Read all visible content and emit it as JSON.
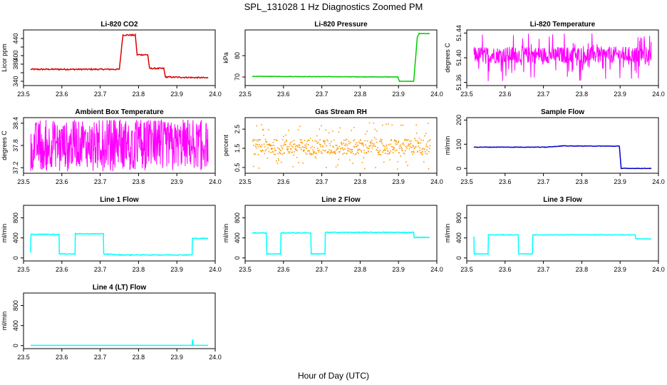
{
  "figure": {
    "title": "SPL_131028  1 Hz Diagnostics Zoomed PM",
    "xlabel": "Hour of Day (UTC)"
  },
  "chart_data": [
    {
      "type": "line",
      "title": "Li-820 CO2",
      "ylabel": "Licor ppm",
      "color": "#dd0000",
      "xlim": [
        23.5,
        24.0
      ],
      "ylim": [
        330,
        460
      ],
      "xticks": [
        "23.5",
        "23.6",
        "23.7",
        "23.8",
        "23.9",
        "24.0"
      ],
      "yticks": [
        "340",
        "360",
        "380",
        "400",
        "420",
        "440"
      ],
      "yticks_shown": [
        "340",
        "380",
        "400",
        "440"
      ],
      "series": [
        {
          "x": [
            23.5,
            23.75,
            23.76,
            23.795,
            23.8,
            23.83,
            23.835,
            23.875,
            23.88,
            24.0
          ],
          "y": [
            368,
            368,
            448,
            448,
            402,
            402,
            370,
            370,
            350,
            348
          ],
          "noise": 1.5
        }
      ]
    },
    {
      "type": "line",
      "title": "Li-820 Pressure",
      "ylabel": "kPa",
      "color": "#00cc00",
      "xlim": [
        23.5,
        24.0
      ],
      "ylim": [
        66,
        92
      ],
      "xticks": [
        "23.5",
        "23.6",
        "23.7",
        "23.8",
        "23.9",
        "24.0"
      ],
      "yticks_shown": [
        "70",
        "80"
      ],
      "series": [
        {
          "x": [
            23.5,
            23.91,
            23.915,
            23.955,
            23.965,
            23.97,
            24.0
          ],
          "y": [
            70.3,
            70.0,
            68.0,
            68.0,
            88.5,
            90.3,
            90.3
          ],
          "noise": 0.1
        }
      ]
    },
    {
      "type": "line",
      "title": "Li-820 Temperature",
      "ylabel": "degrees C",
      "color": "#ff00ff",
      "xlim": [
        23.5,
        24.0
      ],
      "ylim": [
        51.355,
        51.445
      ],
      "xticks": [
        "23.5",
        "23.6",
        "23.7",
        "23.8",
        "23.9",
        "24.0"
      ],
      "yticks_shown": [
        "51.36",
        "51.40",
        "51.44"
      ],
      "series": [
        {
          "x": [
            23.5,
            24.0
          ],
          "band": [
            51.391,
            51.418
          ],
          "extremes": [
            51.362,
            51.44
          ]
        }
      ]
    },
    {
      "type": "line",
      "title": "Ambient Box Temperature",
      "ylabel": "degrees C",
      "color": "#ff00ff",
      "xlim": [
        23.5,
        24.0
      ],
      "ylim": [
        37.05,
        38.55
      ],
      "xticks": [
        "23.5",
        "23.6",
        "23.7",
        "23.8",
        "23.9",
        "24.0"
      ],
      "yticks_shown": [
        "37.2",
        "37.8",
        "38.4"
      ],
      "series": [
        {
          "x": [
            23.5,
            24.0
          ],
          "band": [
            37.2,
            38.45
          ],
          "extremes": [
            37.1,
            38.5
          ]
        }
      ]
    },
    {
      "type": "scatter",
      "title": "Gas Stream RH",
      "ylabel": "percent",
      "color": "#ff9900",
      "xlim": [
        23.5,
        24.0
      ],
      "ylim": [
        0.2,
        3.1
      ],
      "xticks": [
        "23.5",
        "23.6",
        "23.7",
        "23.8",
        "23.9",
        "24.0"
      ],
      "yticks_shown": [
        "0.5",
        "1.5",
        "2.5"
      ],
      "series": [
        {
          "x": [
            23.5,
            24.0
          ],
          "band": [
            1.2,
            2.0
          ],
          "extremes": [
            0.4,
            2.9
          ]
        }
      ]
    },
    {
      "type": "line",
      "title": "Sample Flow",
      "ylabel": "ml/min",
      "color": "#0000cc",
      "xlim": [
        23.5,
        24.0
      ],
      "ylim": [
        -20,
        210
      ],
      "xticks": [
        "23.5",
        "23.6",
        "23.7",
        "23.8",
        "23.9",
        "24.0"
      ],
      "yticks_shown": [
        "0",
        "100",
        "200"
      ],
      "series": [
        {
          "x": [
            23.5,
            23.7,
            23.75,
            23.91,
            23.915,
            24.0
          ],
          "y": [
            88,
            88,
            93,
            92,
            0,
            0
          ],
          "noise": 1
        }
      ]
    },
    {
      "type": "line",
      "title": "Line 1 Flow",
      "ylabel": "ml/min",
      "color": "#00ffff",
      "xlim": [
        23.5,
        24.0
      ],
      "ylim": [
        -60,
        1050
      ],
      "xticks": [
        "23.5",
        "23.6",
        "23.7",
        "23.8",
        "23.9",
        "24.0"
      ],
      "yticks_shown": [
        "0",
        "400",
        "800"
      ],
      "series": [
        {
          "x": [
            23.5,
            23.501,
            23.58,
            23.581,
            23.625,
            23.626,
            23.705,
            23.706,
            23.75,
            23.955,
            23.956,
            24.0
          ],
          "y": [
            100,
            470,
            470,
            80,
            80,
            480,
            480,
            80,
            60,
            60,
            390,
            390
          ],
          "noise": 8
        }
      ]
    },
    {
      "type": "line",
      "title": "Line 2 Flow",
      "ylabel": "ml/min",
      "color": "#00ffff",
      "xlim": [
        23.5,
        24.0
      ],
      "ylim": [
        -60,
        1050
      ],
      "xticks": [
        "23.5",
        "23.6",
        "23.7",
        "23.8",
        "23.9",
        "24.0"
      ],
      "yticks_shown": [
        "0",
        "400",
        "800"
      ],
      "series": [
        {
          "x": [
            23.5,
            23.54,
            23.541,
            23.58,
            23.581,
            23.665,
            23.666,
            23.705,
            23.706,
            23.955,
            23.956,
            24.0
          ],
          "y": [
            500,
            500,
            80,
            80,
            500,
            500,
            80,
            80,
            510,
            510,
            410,
            410
          ],
          "noise": 8
        }
      ]
    },
    {
      "type": "line",
      "title": "Line 3 Flow",
      "ylabel": "ml/min",
      "color": "#00ffff",
      "xlim": [
        23.5,
        24.0
      ],
      "ylim": [
        -60,
        1050
      ],
      "xticks": [
        "23.5",
        "23.6",
        "23.7",
        "23.8",
        "23.9",
        "24.0"
      ],
      "yticks_shown": [
        "0",
        "400",
        "800"
      ],
      "series": [
        {
          "x": [
            23.5,
            23.501,
            23.54,
            23.541,
            23.625,
            23.626,
            23.665,
            23.666,
            23.955,
            23.956,
            24.0
          ],
          "y": [
            430,
            80,
            80,
            460,
            460,
            80,
            80,
            460,
            460,
            380,
            380
          ],
          "noise": 6
        }
      ]
    },
    {
      "type": "line",
      "title": "Line 4 (LT) Flow",
      "ylabel": "ml/min",
      "color": "#00ffff",
      "xlim": [
        23.5,
        24.0
      ],
      "ylim": [
        -60,
        1050
      ],
      "xticks": [
        "23.5",
        "23.6",
        "23.7",
        "23.8",
        "23.9",
        "24.0"
      ],
      "yticks_shown": [
        "0",
        "400",
        "800"
      ],
      "series": [
        {
          "x": [
            23.5,
            23.955,
            23.956,
            23.957,
            23.958,
            24.0
          ],
          "y": [
            5,
            5,
            110,
            110,
            5,
            5
          ],
          "noise": 0
        }
      ]
    }
  ]
}
